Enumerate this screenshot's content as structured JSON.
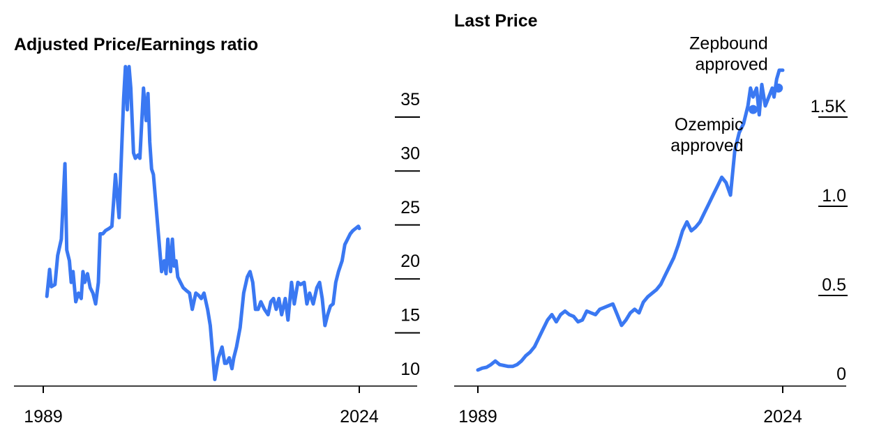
{
  "colors": {
    "line": "#3a78f2",
    "axis": "#000000"
  },
  "chart_data": [
    {
      "type": "line",
      "title": "Adjusted Price/Earnings ratio",
      "x_range": [
        1989,
        2024
      ],
      "xticks": [
        "1989",
        "2024"
      ],
      "ylim": [
        8.5,
        38
      ],
      "yticks": [
        10,
        15,
        20,
        25,
        30,
        35
      ],
      "ytick_labels": [
        "10",
        "15",
        "20",
        "25",
        "30",
        "35"
      ],
      "series": [
        {
          "x": [
            1989.4,
            1989.7,
            1989.9,
            1990.3,
            1990.6,
            1991.0,
            1991.4,
            1991.6,
            1991.9,
            1992.1,
            1992.3,
            1992.6,
            1992.9,
            1993.2,
            1993.4,
            1993.6,
            1993.9,
            1994.2,
            1994.5,
            1994.8,
            1995.1,
            1995.3,
            1995.6,
            1995.9,
            1996.3,
            1996.6,
            1997.0,
            1997.4,
            1997.6,
            1997.9,
            1998.1,
            1998.3,
            1998.5,
            1998.7,
            1998.8,
            1999.0,
            1999.2,
            1999.5,
            1999.7,
            2000.1,
            2000.4,
            2000.6,
            2000.8,
            2001.0,
            2001.2,
            2001.4,
            2001.8,
            2002.1,
            2002.4,
            2002.6,
            2002.8,
            2003.1,
            2003.3,
            2003.5,
            2003.7,
            2003.9,
            2004.2,
            2004.5,
            2004.9,
            2005.2,
            2005.5,
            2005.9,
            2006.2,
            2006.5,
            2006.8,
            2007.2,
            2007.5,
            2007.7,
            2008.0,
            2008.4,
            2008.8,
            2009.1,
            2009.3,
            2009.6,
            2009.9,
            2010.1,
            2010.4,
            2010.8,
            2011.2,
            2011.6,
            2011.9,
            2012.2,
            2012.5,
            2012.8,
            2013.1,
            2013.5,
            2013.9,
            2014.2,
            2014.5,
            2014.8,
            2015.1,
            2015.4,
            2015.8,
            2016.1,
            2016.5,
            2016.8,
            2017.2,
            2017.5,
            2017.9,
            2018.2,
            2018.5,
            2018.9,
            2019.3,
            2019.6,
            2019.9,
            2020.2,
            2020.5,
            2020.8,
            2021.1,
            2021.4,
            2021.7,
            2022.1,
            2022.4,
            2022.7,
            2023.0,
            2023.3,
            2023.6,
            2023.9,
            2024.0
          ],
          "y": [
            16.7,
            19.2,
            17.6,
            17.8,
            20.5,
            22.0,
            29.0,
            21.0,
            20.0,
            18.0,
            19.0,
            16.2,
            17.0,
            16.5,
            19.0,
            18.0,
            18.8,
            17.5,
            17.0,
            16.0,
            18.0,
            22.5,
            22.5,
            22.8,
            23.0,
            23.2,
            28.0,
            24.0,
            28.5,
            35.0,
            38.0,
            34.0,
            38.0,
            36.0,
            34.0,
            30.0,
            29.5,
            29.8,
            29.5,
            36.0,
            33.0,
            35.5,
            31.0,
            28.5,
            28.0,
            26.0,
            22.0,
            19.0,
            20.0,
            18.8,
            22.0,
            19.0,
            22.0,
            19.5,
            20.0,
            18.5,
            18.0,
            17.5,
            17.2,
            17.0,
            15.5,
            17.0,
            16.8,
            16.5,
            17.0,
            15.5,
            14.0,
            12.0,
            9.0,
            11.0,
            12.0,
            10.5,
            10.5,
            11.0,
            10.0,
            11.0,
            12.0,
            13.8,
            17.0,
            18.5,
            19.0,
            18.0,
            15.5,
            15.5,
            16.2,
            15.5,
            15.0,
            16.2,
            16.5,
            15.5,
            16.5,
            15.0,
            16.5,
            14.5,
            18.0,
            16.0,
            18.0,
            17.8,
            18.0,
            16.0,
            17.0,
            16.0,
            17.5,
            18.0,
            16.5,
            14.0,
            15.0,
            15.8,
            16.0,
            18.0,
            19.0,
            20.0,
            21.5,
            22.0,
            22.5,
            22.8,
            23.0,
            23.2,
            23.0
          ]
        }
      ]
    },
    {
      "type": "line",
      "title": "Last Price",
      "x_range": [
        1989,
        2024
      ],
      "xticks": [
        "1989",
        "2024"
      ],
      "ylim": [
        -0.1,
        1.75
      ],
      "yticks": [
        0,
        0.5,
        1.0,
        1.5
      ],
      "ytick_labels": [
        "0",
        "0.5",
        "1.0",
        "1.5K"
      ],
      "series": [
        {
          "x": [
            1989.0,
            1989.5,
            1990.0,
            1990.5,
            1991.0,
            1991.5,
            1992.0,
            1992.5,
            1993.0,
            1993.5,
            1994.0,
            1994.5,
            1995.0,
            1995.5,
            1996.0,
            1996.5,
            1997.0,
            1997.5,
            1998.0,
            1998.5,
            1999.0,
            1999.5,
            2000.0,
            2000.5,
            2001.0,
            2001.5,
            2002.0,
            2002.5,
            2003.0,
            2003.5,
            2004.0,
            2004.5,
            2005.0,
            2005.5,
            2006.0,
            2006.5,
            2007.0,
            2007.5,
            2008.0,
            2008.5,
            2009.0,
            2009.5,
            2010.0,
            2010.5,
            2011.0,
            2011.5,
            2012.0,
            2012.5,
            2013.0,
            2013.5,
            2014.0,
            2014.5,
            2015.0,
            2015.5,
            2016.0,
            2016.5,
            2017.0,
            2017.5,
            2018.0,
            2018.5,
            2019.0,
            2019.5,
            2020.0,
            2020.3,
            2020.6,
            2021.0,
            2021.3,
            2021.6,
            2022.0,
            2022.4,
            2022.8,
            2023.0,
            2023.3,
            2023.6,
            2024.0
          ],
          "y": [
            0.02,
            0.03,
            0.035,
            0.05,
            0.07,
            0.05,
            0.045,
            0.04,
            0.04,
            0.05,
            0.07,
            0.1,
            0.12,
            0.15,
            0.2,
            0.25,
            0.3,
            0.33,
            0.29,
            0.33,
            0.35,
            0.33,
            0.32,
            0.29,
            0.3,
            0.35,
            0.34,
            0.33,
            0.36,
            0.37,
            0.38,
            0.39,
            0.33,
            0.27,
            0.3,
            0.34,
            0.36,
            0.34,
            0.4,
            0.43,
            0.45,
            0.47,
            0.5,
            0.55,
            0.6,
            0.65,
            0.72,
            0.8,
            0.85,
            0.8,
            0.82,
            0.85,
            0.9,
            0.95,
            1.0,
            1.05,
            1.1,
            1.07,
            1.0,
            1.25,
            1.35,
            1.4,
            1.5,
            1.6,
            1.55,
            1.6,
            1.45,
            1.62,
            1.5,
            1.55,
            1.6,
            1.55,
            1.65,
            1.7,
            1.7
          ]
        }
      ],
      "annotations": [
        {
          "lines": [
            "Ozempic",
            "approved"
          ],
          "x": 2020.6,
          "y": 1.48
        },
        {
          "lines": [
            "Zepbound",
            "approved"
          ],
          "x": 2023.5,
          "y": 1.6
        }
      ]
    }
  ]
}
